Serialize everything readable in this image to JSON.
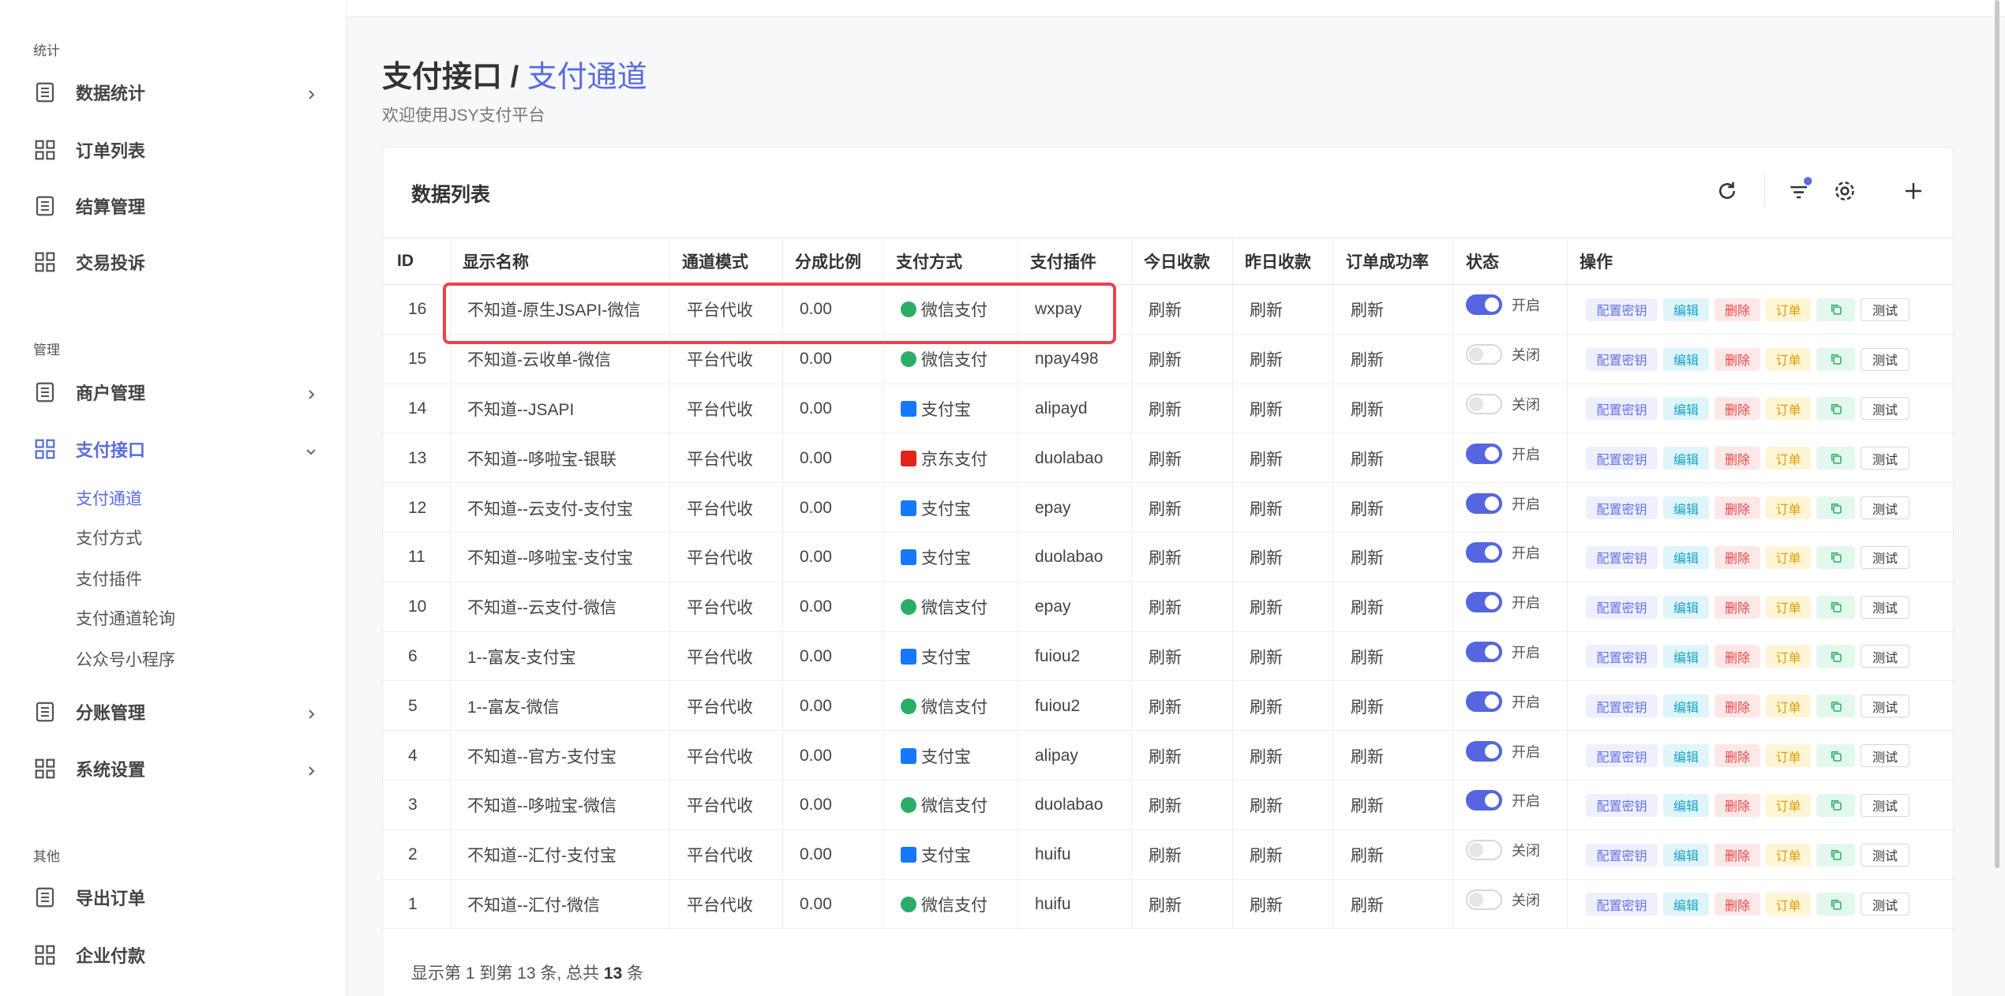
{
  "sidebar": {
    "sections": [
      {
        "label": "统计",
        "items": [
          {
            "label": "数据统计",
            "arrow": "right"
          },
          {
            "label": "订单列表"
          },
          {
            "label": "结算管理"
          },
          {
            "label": "交易投诉"
          }
        ]
      },
      {
        "label": "管理",
        "items": [
          {
            "label": "商户管理",
            "arrow": "right"
          },
          {
            "label": "支付接口",
            "arrow": "down",
            "active": true,
            "children": [
              {
                "label": "支付通道",
                "active": true
              },
              {
                "label": "支付方式"
              },
              {
                "label": "支付插件"
              },
              {
                "label": "支付通道轮询"
              },
              {
                "label": "公众号小程序"
              }
            ]
          },
          {
            "label": "分账管理",
            "arrow": "right"
          },
          {
            "label": "系统设置",
            "arrow": "right"
          }
        ]
      },
      {
        "label": "其他",
        "items": [
          {
            "label": "导出订单"
          },
          {
            "label": "企业付款"
          }
        ]
      }
    ]
  },
  "header": {
    "parent": "支付接口",
    "separator": "/",
    "current": "支付通道",
    "subtitle": "欢迎使用JSY支付平台"
  },
  "card": {
    "title": "数据列表"
  },
  "table": {
    "columns": [
      "ID",
      "显示名称",
      "通道模式",
      "分成比例",
      "支付方式",
      "支付插件",
      "今日收款",
      "昨日收款",
      "订单成功率",
      "状态",
      "操作"
    ],
    "actions": [
      "配置密钥",
      "编辑",
      "删除",
      "订单",
      "测试"
    ],
    "rows": [
      {
        "id": 16,
        "name": "不知道-原生JSAPI-微信",
        "mode": "平台代收",
        "ratio": "0.00",
        "pay": {
          "label": "微信支付",
          "color": "#2aae67"
        },
        "plugin": "wxpay",
        "today": "刷新",
        "yesterday": "刷新",
        "rate": "刷新",
        "status": {
          "label": "开启",
          "on": true
        }
      },
      {
        "id": 15,
        "name": "不知道-云收单-微信",
        "mode": "平台代收",
        "ratio": "0.00",
        "pay": {
          "label": "微信支付",
          "color": "#2aae67"
        },
        "plugin": "npay498",
        "today": "刷新",
        "yesterday": "刷新",
        "rate": "刷新",
        "status": {
          "label": "关闭",
          "on": false
        }
      },
      {
        "id": 14,
        "name": "不知道--JSAPI",
        "mode": "平台代收",
        "ratio": "0.00",
        "pay": {
          "label": "支付宝",
          "color": "#1677ff"
        },
        "plugin": "alipayd",
        "today": "刷新",
        "yesterday": "刷新",
        "rate": "刷新",
        "status": {
          "label": "关闭",
          "on": false
        }
      },
      {
        "id": 13,
        "name": "不知道--哆啦宝-银联",
        "mode": "平台代收",
        "ratio": "0.00",
        "pay": {
          "label": "京东支付",
          "color": "#e1251b"
        },
        "plugin": "duolabao",
        "today": "刷新",
        "yesterday": "刷新",
        "rate": "刷新",
        "status": {
          "label": "开启",
          "on": true
        }
      },
      {
        "id": 12,
        "name": "不知道--云支付-支付宝",
        "mode": "平台代收",
        "ratio": "0.00",
        "pay": {
          "label": "支付宝",
          "color": "#1677ff"
        },
        "plugin": "epay",
        "today": "刷新",
        "yesterday": "刷新",
        "rate": "刷新",
        "status": {
          "label": "开启",
          "on": true
        }
      },
      {
        "id": 11,
        "name": "不知道--哆啦宝-支付宝",
        "mode": "平台代收",
        "ratio": "0.00",
        "pay": {
          "label": "支付宝",
          "color": "#1677ff"
        },
        "plugin": "duolabao",
        "today": "刷新",
        "yesterday": "刷新",
        "rate": "刷新",
        "status": {
          "label": "开启",
          "on": true
        }
      },
      {
        "id": 10,
        "name": "不知道--云支付-微信",
        "mode": "平台代收",
        "ratio": "0.00",
        "pay": {
          "label": "微信支付",
          "color": "#2aae67"
        },
        "plugin": "epay",
        "today": "刷新",
        "yesterday": "刷新",
        "rate": "刷新",
        "status": {
          "label": "开启",
          "on": true
        }
      },
      {
        "id": 6,
        "name": "1--富友-支付宝",
        "mode": "平台代收",
        "ratio": "0.00",
        "pay": {
          "label": "支付宝",
          "color": "#1677ff"
        },
        "plugin": "fuiou2",
        "today": "刷新",
        "yesterday": "刷新",
        "rate": "刷新",
        "status": {
          "label": "开启",
          "on": true
        }
      },
      {
        "id": 5,
        "name": "1--富友-微信",
        "mode": "平台代收",
        "ratio": "0.00",
        "pay": {
          "label": "微信支付",
          "color": "#2aae67"
        },
        "plugin": "fuiou2",
        "today": "刷新",
        "yesterday": "刷新",
        "rate": "刷新",
        "status": {
          "label": "开启",
          "on": true
        }
      },
      {
        "id": 4,
        "name": "不知道--官方-支付宝",
        "mode": "平台代收",
        "ratio": "0.00",
        "pay": {
          "label": "支付宝",
          "color": "#1677ff"
        },
        "plugin": "alipay",
        "today": "刷新",
        "yesterday": "刷新",
        "rate": "刷新",
        "status": {
          "label": "开启",
          "on": true
        }
      },
      {
        "id": 3,
        "name": "不知道--哆啦宝-微信",
        "mode": "平台代收",
        "ratio": "0.00",
        "pay": {
          "label": "微信支付",
          "color": "#2aae67"
        },
        "plugin": "duolabao",
        "today": "刷新",
        "yesterday": "刷新",
        "rate": "刷新",
        "status": {
          "label": "开启",
          "on": true
        }
      },
      {
        "id": 2,
        "name": "不知道--汇付-支付宝",
        "mode": "平台代收",
        "ratio": "0.00",
        "pay": {
          "label": "支付宝",
          "color": "#1677ff"
        },
        "plugin": "huifu",
        "today": "刷新",
        "yesterday": "刷新",
        "rate": "刷新",
        "status": {
          "label": "关闭",
          "on": false
        }
      },
      {
        "id": 1,
        "name": "不知道--汇付-微信",
        "mode": "平台代收",
        "ratio": "0.00",
        "pay": {
          "label": "微信支付",
          "color": "#2aae67"
        },
        "plugin": "huifu",
        "today": "刷新",
        "yesterday": "刷新",
        "rate": "刷新",
        "status": {
          "label": "关闭",
          "on": false
        }
      }
    ]
  },
  "footer": {
    "text_before": "显示第 1 到第 13 条, 总共",
    "total": 13,
    "text_after": "条"
  }
}
